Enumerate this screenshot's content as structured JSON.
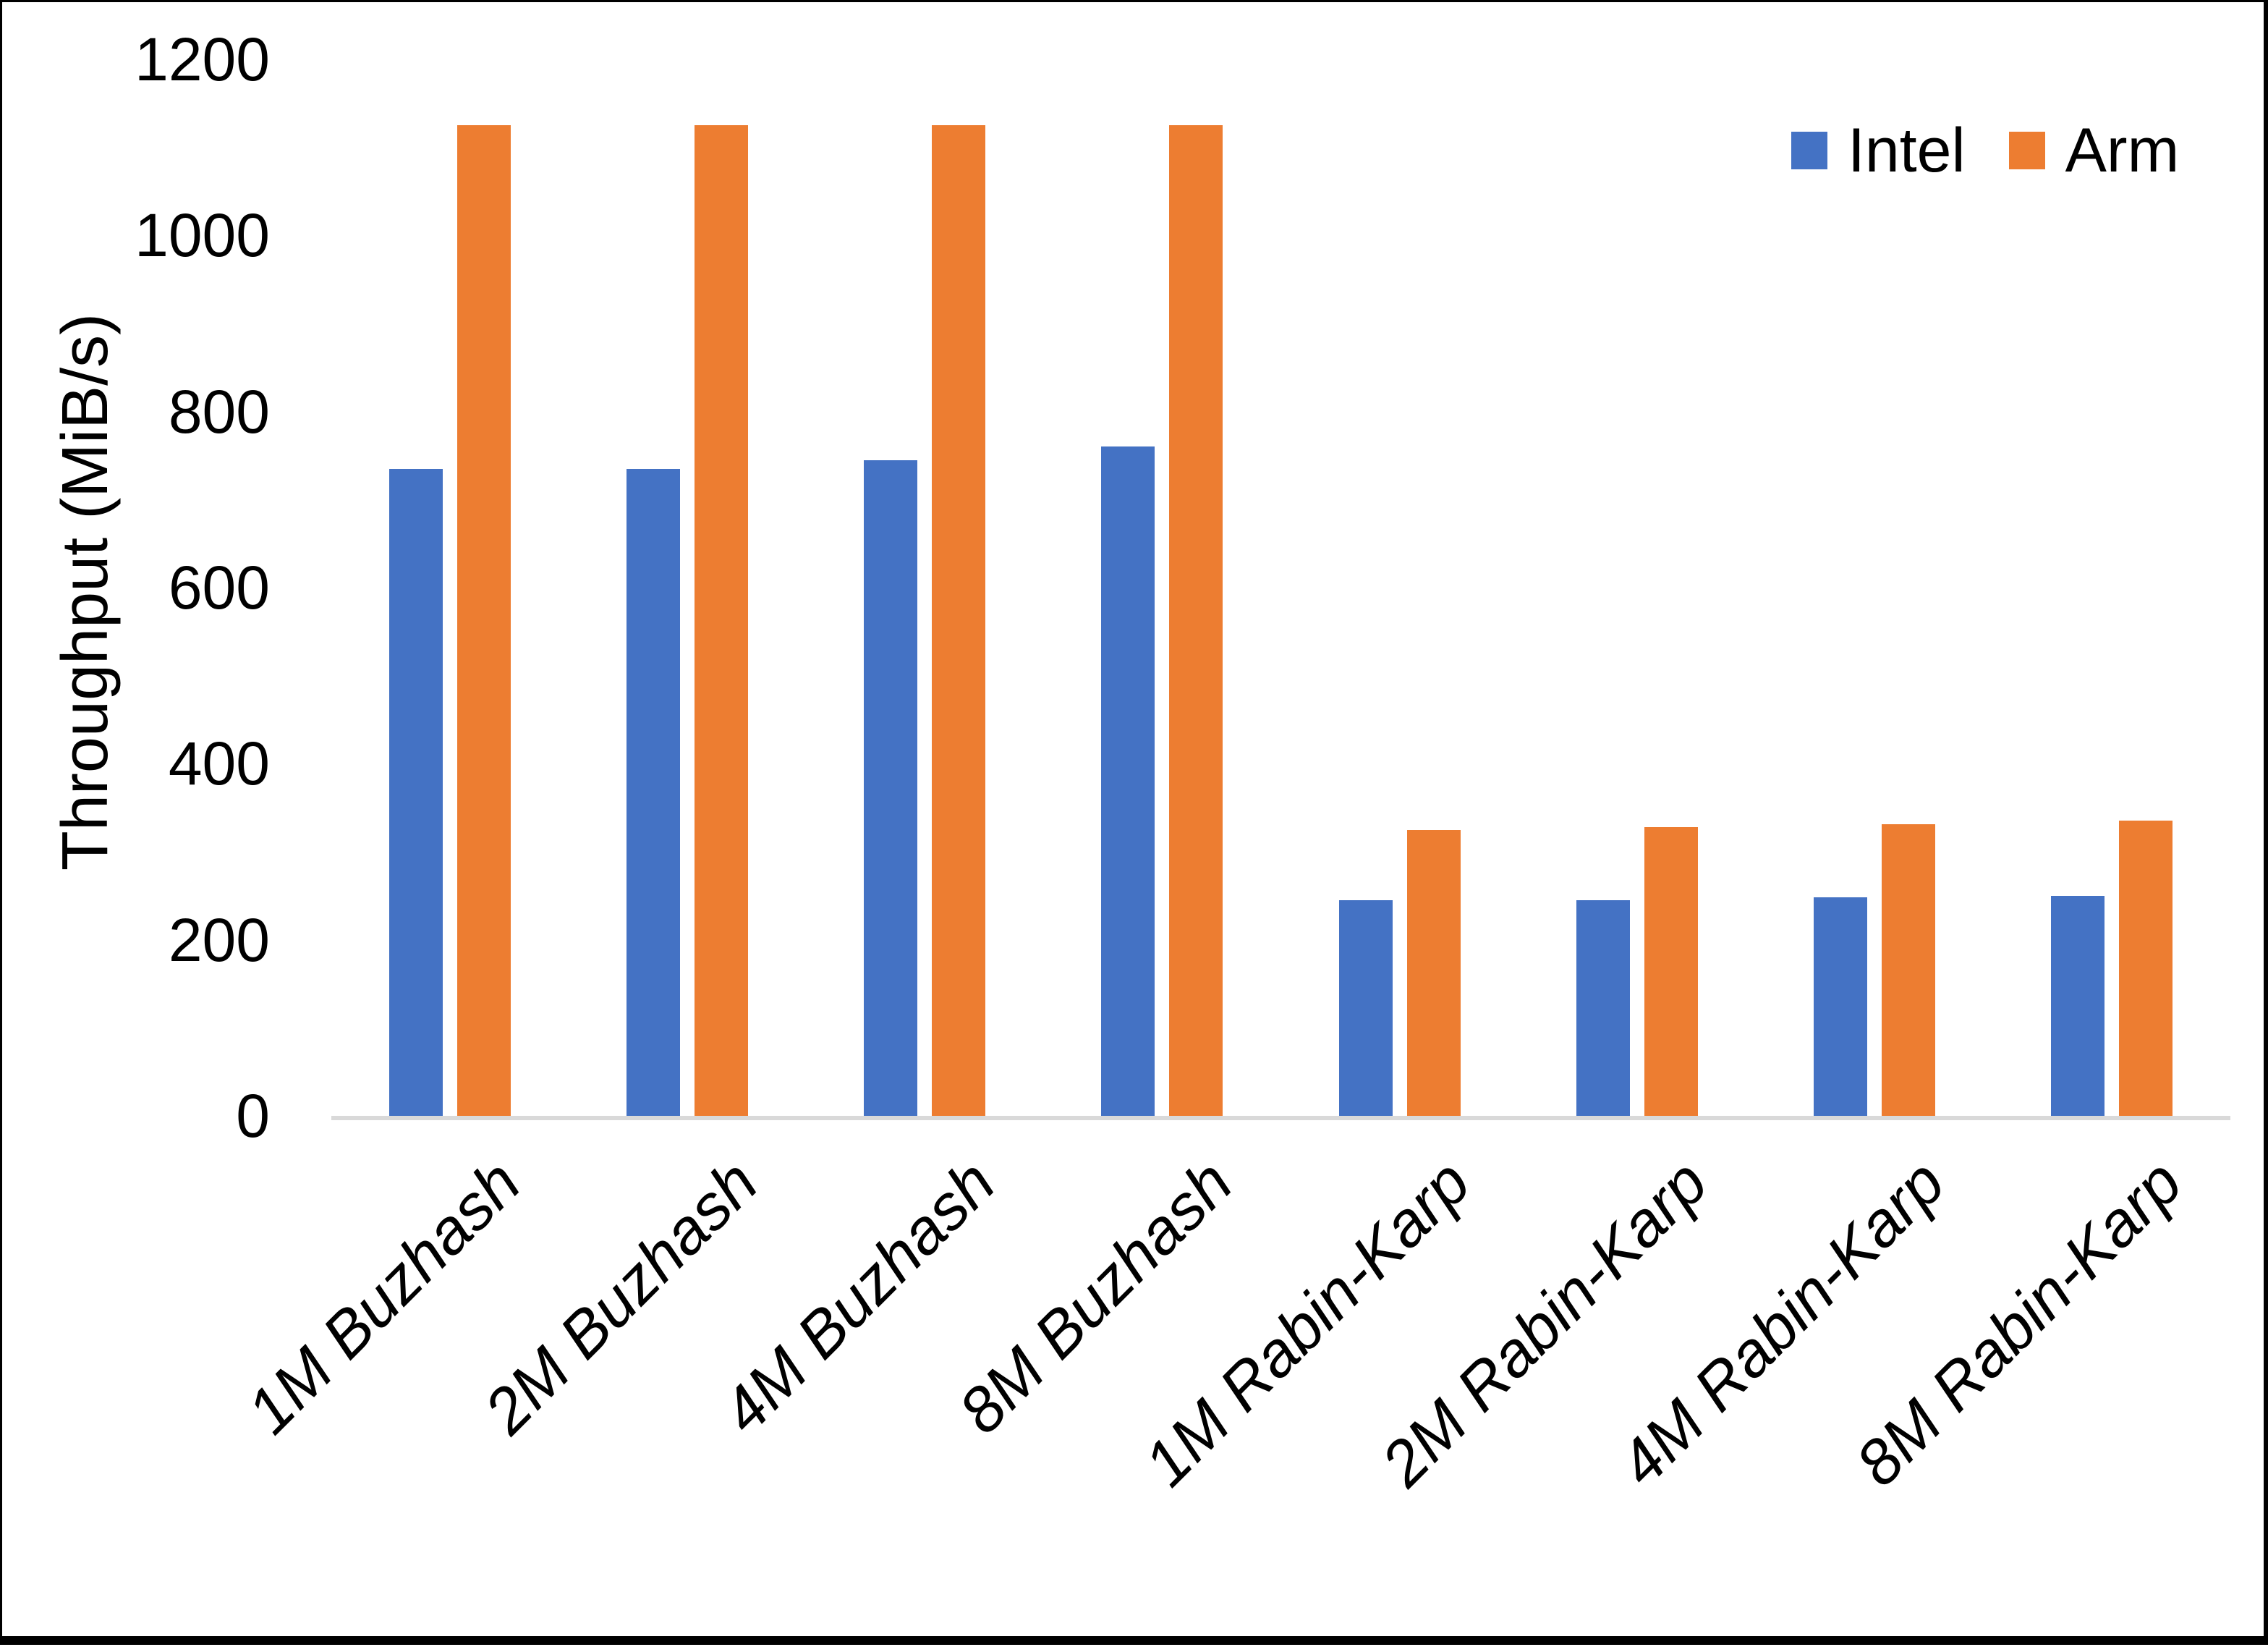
{
  "chart_data": {
    "type": "bar",
    "title": "",
    "xlabel": "",
    "ylabel": "Throughput (MiB/s)",
    "ylim": [
      0,
      1200
    ],
    "yticks": [
      0,
      200,
      400,
      600,
      800,
      1000,
      1200
    ],
    "grid": false,
    "legend_position": "top-right",
    "axis_line_color": "#D9D9D9",
    "text_color": "#000000",
    "categories": [
      "1M Buzhash",
      "2M Buzhash",
      "4M Buzhash",
      "8M Buzhash",
      "1M Rabin-Karp",
      "2M Rabin-Karp",
      "4M Rabin-Karp",
      "8M Rabin-Karp"
    ],
    "series": [
      {
        "name": "Intel",
        "color": "#4472C4",
        "values": [
          735,
          735,
          745,
          760,
          245,
          245,
          248,
          250
        ]
      },
      {
        "name": "Arm",
        "color": "#ED7D31",
        "values": [
          1125,
          1125,
          1125,
          1125,
          325,
          328,
          331,
          335
        ]
      }
    ]
  }
}
